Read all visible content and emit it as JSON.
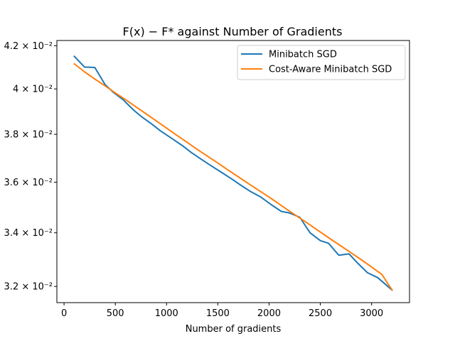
{
  "chart_data": {
    "type": "line",
    "title": "F(x) − F* against Number of Gradients",
    "xlabel": "Number of gradients",
    "ylabel": "",
    "xlim": [
      -70,
      3370
    ],
    "ylim": [
      0.03142,
      0.04225
    ],
    "yscale": "log",
    "grid": false,
    "legend_position": "top-right",
    "x_ticks": [
      0,
      500,
      1000,
      1500,
      2000,
      2500,
      3000
    ],
    "x_tick_labels": [
      "0",
      "500",
      "1000",
      "1500",
      "2000",
      "2500",
      "3000"
    ],
    "y_ticks": [
      0.032,
      0.034,
      0.036,
      0.038,
      0.04,
      0.042
    ],
    "y_tick_labels": [
      "3.2 × 10⁻²",
      "3.4 × 10⁻²",
      "3.6 × 10⁻²",
      "3.8 × 10⁻²",
      "4 × 10⁻²",
      "4.2 × 10⁻²"
    ],
    "series": [
      {
        "name": "Minibatch SGD",
        "color": "#1f77b4",
        "x": [
          100,
          200,
          300,
          400,
          480,
          580,
          680,
          760,
          860,
          940,
          1060,
          1160,
          1240,
          1340,
          1440,
          1540,
          1640,
          1720,
          1820,
          1920,
          2020,
          2120,
          2200,
          2300,
          2400,
          2500,
          2580,
          2680,
          2780,
          2860,
          2960,
          3060,
          3200
        ],
        "y": [
          0.0415,
          0.041,
          0.04098,
          0.0402,
          0.03985,
          0.0395,
          0.03905,
          0.03875,
          0.03843,
          0.03815,
          0.0378,
          0.0375,
          0.03723,
          0.03694,
          0.03666,
          0.03639,
          0.03612,
          0.03589,
          0.03562,
          0.0354,
          0.0351,
          0.03483,
          0.03477,
          0.0346,
          0.034,
          0.0337,
          0.0336,
          0.03315,
          0.0332,
          0.03287,
          0.0325,
          0.03232,
          0.03187
        ]
      },
      {
        "name": "Cost-Aware Minibatch SGD",
        "color": "#ff7f0e",
        "x": [
          100,
          200,
          300,
          400,
          500,
          600,
          700,
          800,
          900,
          1000,
          1100,
          1200,
          1300,
          1400,
          1500,
          1600,
          1700,
          1800,
          1900,
          2000,
          2100,
          2200,
          2300,
          2400,
          2500,
          2600,
          2700,
          2800,
          2900,
          3000,
          3100,
          3200
        ],
        "y": [
          0.04115,
          0.04078,
          0.04045,
          0.04014,
          0.03982,
          0.03952,
          0.0392,
          0.03889,
          0.03858,
          0.03827,
          0.03796,
          0.03766,
          0.03736,
          0.03707,
          0.03679,
          0.0365,
          0.03622,
          0.03594,
          0.03567,
          0.0354,
          0.03512,
          0.03484,
          0.03457,
          0.0343,
          0.03403,
          0.03376,
          0.0335,
          0.03324,
          0.03298,
          0.03271,
          0.03244,
          0.03187
        ]
      }
    ]
  }
}
